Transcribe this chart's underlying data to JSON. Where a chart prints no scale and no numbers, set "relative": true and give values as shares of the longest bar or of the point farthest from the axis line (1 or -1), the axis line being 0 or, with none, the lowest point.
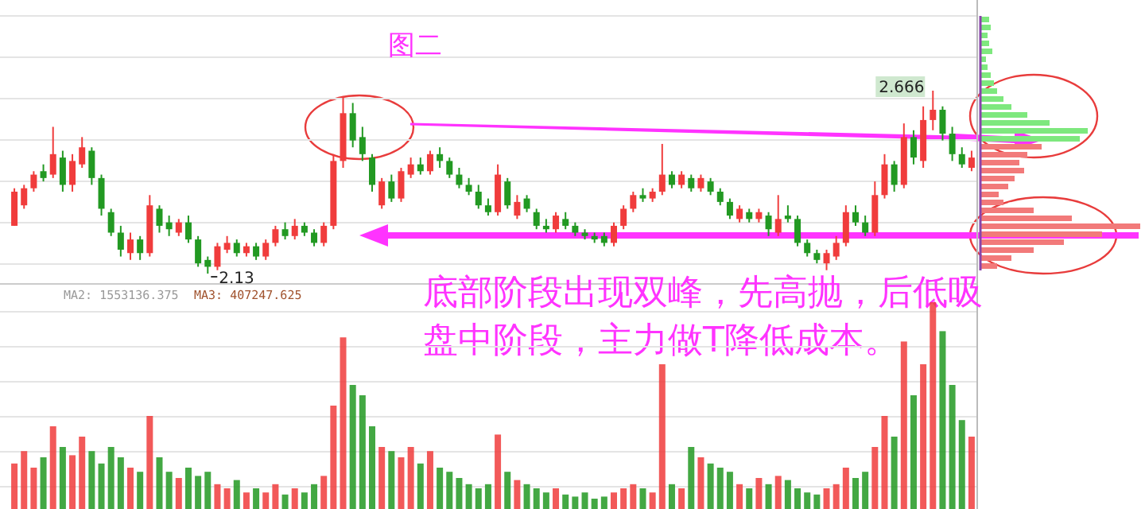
{
  "chart_data": [
    {
      "type": "candlestick",
      "categories": [
        null,
        null,
        null,
        null,
        null,
        null,
        null,
        null,
        null,
        null,
        null,
        null,
        null,
        null,
        null,
        null,
        null,
        null,
        null,
        null,
        null,
        null,
        null,
        null,
        null,
        null,
        null,
        null,
        null,
        null,
        null,
        null,
        null,
        null,
        null,
        null,
        null,
        null,
        null,
        null,
        null,
        null,
        null,
        null,
        null,
        null,
        null,
        null,
        null,
        null,
        null,
        null,
        null,
        null,
        null,
        null,
        null,
        null,
        null,
        null,
        null,
        null,
        null,
        null,
        null,
        null,
        null,
        null,
        null,
        null,
        null,
        null,
        null,
        null,
        null,
        null,
        null,
        null,
        null,
        null,
        null,
        null,
        null,
        null,
        null,
        null,
        null,
        null,
        null,
        null,
        null,
        null,
        null,
        null,
        null,
        null,
        null,
        null,
        null,
        null
      ],
      "ohlc": [
        [
          2.27,
          2.38,
          2.27,
          2.37
        ],
        [
          2.33,
          2.39,
          2.32,
          2.38
        ],
        [
          2.38,
          2.43,
          2.37,
          2.42
        ],
        [
          2.43,
          2.45,
          2.4,
          2.41
        ],
        [
          2.42,
          2.56,
          2.41,
          2.48
        ],
        [
          2.47,
          2.49,
          2.37,
          2.39
        ],
        [
          2.39,
          2.48,
          2.37,
          2.46
        ],
        [
          2.45,
          2.53,
          2.44,
          2.5
        ],
        [
          2.49,
          2.5,
          2.39,
          2.41
        ],
        [
          2.41,
          2.42,
          2.3,
          2.32
        ],
        [
          2.31,
          2.32,
          2.24,
          2.25
        ],
        [
          2.25,
          2.27,
          2.18,
          2.2
        ],
        [
          2.19,
          2.25,
          2.17,
          2.23
        ],
        [
          2.23,
          2.24,
          2.17,
          2.19
        ],
        [
          2.19,
          2.36,
          2.18,
          2.33
        ],
        [
          2.32,
          2.33,
          2.25,
          2.27
        ],
        [
          2.28,
          2.3,
          2.24,
          2.26
        ],
        [
          2.25,
          2.29,
          2.24,
          2.28
        ],
        [
          2.28,
          2.3,
          2.22,
          2.23
        ],
        [
          2.23,
          2.24,
          2.15,
          2.16
        ],
        [
          2.17,
          2.18,
          2.13,
          2.15
        ],
        [
          2.15,
          2.22,
          2.14,
          2.21
        ],
        [
          2.2,
          2.24,
          2.19,
          2.22
        ],
        [
          2.22,
          2.23,
          2.18,
          2.19
        ],
        [
          2.19,
          2.22,
          2.18,
          2.21
        ],
        [
          2.21,
          2.22,
          2.17,
          2.18
        ],
        [
          2.18,
          2.23,
          2.17,
          2.22
        ],
        [
          2.22,
          2.27,
          2.21,
          2.26
        ],
        [
          2.26,
          2.28,
          2.23,
          2.24
        ],
        [
          2.24,
          2.29,
          2.23,
          2.27
        ],
        [
          2.27,
          2.28,
          2.24,
          2.25
        ],
        [
          2.25,
          2.26,
          2.21,
          2.22
        ],
        [
          2.22,
          2.28,
          2.21,
          2.27
        ],
        [
          2.27,
          2.48,
          2.26,
          2.46
        ],
        [
          2.46,
          2.65,
          2.44,
          2.6
        ],
        [
          2.6,
          2.63,
          2.5,
          2.52
        ],
        [
          2.53,
          2.56,
          2.46,
          2.48
        ],
        [
          2.47,
          2.48,
          2.37,
          2.39
        ],
        [
          2.33,
          2.41,
          2.32,
          2.4
        ],
        [
          2.4,
          2.42,
          2.34,
          2.35
        ],
        [
          2.35,
          2.44,
          2.34,
          2.43
        ],
        [
          2.42,
          2.47,
          2.41,
          2.45
        ],
        [
          2.45,
          2.47,
          2.42,
          2.43
        ],
        [
          2.43,
          2.49,
          2.42,
          2.48
        ],
        [
          2.48,
          2.5,
          2.44,
          2.46
        ],
        [
          2.46,
          2.47,
          2.41,
          2.42
        ],
        [
          2.42,
          2.44,
          2.38,
          2.39
        ],
        [
          2.39,
          2.41,
          2.36,
          2.37
        ],
        [
          2.37,
          2.39,
          2.32,
          2.33
        ],
        [
          2.33,
          2.35,
          2.3,
          2.31
        ],
        [
          2.31,
          2.45,
          2.3,
          2.42
        ],
        [
          2.4,
          2.41,
          2.32,
          2.33
        ],
        [
          2.3,
          2.36,
          2.29,
          2.34
        ],
        [
          2.35,
          2.36,
          2.31,
          2.32
        ],
        [
          2.31,
          2.32,
          2.26,
          2.27
        ],
        [
          2.27,
          2.29,
          2.25,
          2.26
        ],
        [
          2.26,
          2.31,
          2.25,
          2.3
        ],
        [
          2.29,
          2.31,
          2.26,
          2.27
        ],
        [
          2.27,
          2.28,
          2.24,
          2.25
        ],
        [
          2.25,
          2.26,
          2.23,
          2.24
        ],
        [
          2.24,
          2.25,
          2.22,
          2.23
        ],
        [
          2.24,
          2.25,
          2.21,
          2.22
        ],
        [
          2.22,
          2.28,
          2.21,
          2.27
        ],
        [
          2.27,
          2.33,
          2.26,
          2.32
        ],
        [
          2.32,
          2.37,
          2.31,
          2.36
        ],
        [
          2.36,
          2.38,
          2.34,
          2.35
        ],
        [
          2.35,
          2.38,
          2.34,
          2.37
        ],
        [
          2.37,
          2.51,
          2.36,
          2.42
        ],
        [
          2.42,
          2.43,
          2.38,
          2.39
        ],
        [
          2.39,
          2.43,
          2.38,
          2.42
        ],
        [
          2.41,
          2.42,
          2.37,
          2.38
        ],
        [
          2.38,
          2.42,
          2.37,
          2.41
        ],
        [
          2.4,
          2.41,
          2.36,
          2.37
        ],
        [
          2.37,
          2.38,
          2.33,
          2.34
        ],
        [
          2.34,
          2.35,
          2.29,
          2.3
        ],
        [
          2.29,
          2.33,
          2.28,
          2.32
        ],
        [
          2.31,
          2.32,
          2.28,
          2.29
        ],
        [
          2.29,
          2.32,
          2.28,
          2.31
        ],
        [
          2.3,
          2.31,
          2.24,
          2.26
        ],
        [
          2.25,
          2.36,
          2.24,
          2.29
        ],
        [
          2.3,
          2.33,
          2.28,
          2.29
        ],
        [
          2.29,
          2.3,
          2.21,
          2.22
        ],
        [
          2.22,
          2.23,
          2.18,
          2.19
        ],
        [
          2.19,
          2.2,
          2.16,
          2.17
        ],
        [
          2.16,
          2.2,
          2.14,
          2.19
        ],
        [
          2.18,
          2.24,
          2.17,
          2.22
        ],
        [
          2.22,
          2.33,
          2.21,
          2.31
        ],
        [
          2.31,
          2.33,
          2.27,
          2.28
        ],
        [
          2.28,
          2.3,
          2.24,
          2.25
        ],
        [
          2.25,
          2.4,
          2.24,
          2.36
        ],
        [
          2.36,
          2.48,
          2.35,
          2.45
        ],
        [
          2.45,
          2.46,
          2.37,
          2.39
        ],
        [
          2.39,
          2.57,
          2.38,
          2.53
        ],
        [
          2.53,
          2.55,
          2.45,
          2.47
        ],
        [
          2.46,
          2.62,
          2.44,
          2.58
        ],
        [
          2.58,
          2.666,
          2.55,
          2.61
        ],
        [
          2.61,
          2.62,
          2.52,
          2.54
        ],
        [
          2.54,
          2.56,
          2.46,
          2.48
        ],
        [
          2.48,
          2.5,
          2.44,
          2.45
        ],
        [
          2.44,
          2.49,
          2.43,
          2.47
        ]
      ],
      "colors": [
        "#f03c3c",
        "#f03c3c",
        "#f03c3c",
        "#229922",
        "#f03c3c",
        "#229922",
        "#f03c3c",
        "#f03c3c",
        "#229922",
        "#229922",
        "#229922",
        "#229922",
        "#f03c3c",
        "#229922",
        "#f03c3c",
        "#229922",
        "#229922",
        "#f03c3c",
        "#229922",
        "#229922",
        "#229922",
        "#f03c3c",
        "#f03c3c",
        "#229922",
        "#f03c3c",
        "#229922",
        "#f03c3c",
        "#f03c3c",
        "#229922",
        "#f03c3c",
        "#229922",
        "#229922",
        "#f03c3c",
        "#f03c3c",
        "#f03c3c",
        "#229922",
        "#229922",
        "#229922",
        "#f03c3c",
        "#229922",
        "#f03c3c",
        "#f03c3c",
        "#229922",
        "#f03c3c",
        "#229922",
        "#229922",
        "#229922",
        "#229922",
        "#229922",
        "#229922",
        "#f03c3c",
        "#229922",
        "#f03c3c",
        "#229922",
        "#229922",
        "#229922",
        "#f03c3c",
        "#229922",
        "#229922",
        "#229922",
        "#229922",
        "#229922",
        "#f03c3c",
        "#f03c3c",
        "#f03c3c",
        "#229922",
        "#f03c3c",
        "#f03c3c",
        "#229922",
        "#f03c3c",
        "#229922",
        "#f03c3c",
        "#229922",
        "#229922",
        "#229922",
        "#f03c3c",
        "#229922",
        "#f03c3c",
        "#229922",
        "#f03c3c",
        "#229922",
        "#229922",
        "#229922",
        "#229922",
        "#f03c3c",
        "#f03c3c",
        "#f03c3c",
        "#229922",
        "#229922",
        "#f03c3c",
        "#f03c3c",
        "#229922",
        "#f03c3c",
        "#229922",
        "#f03c3c",
        "#f03c3c",
        "#229922",
        "#229922",
        "#229922",
        "#f03c3c"
      ],
      "grid": true,
      "annotations": [
        "图二",
        "底部阶段出现双峰，先高抛，后低吸盘中阶段，主力做T降低成本。",
        "2.13",
        "2.666"
      ]
    },
    {
      "type": "bar",
      "relative": true,
      "grid": true,
      "categories": [
        null,
        null,
        null,
        null,
        null,
        null,
        null,
        null,
        null,
        null,
        null,
        null,
        null,
        null,
        null,
        null,
        null,
        null,
        null,
        null,
        null,
        null,
        null,
        null,
        null,
        null,
        null,
        null,
        null,
        null,
        null,
        null,
        null,
        null,
        null,
        null,
        null,
        null,
        null,
        null,
        null,
        null,
        null,
        null,
        null,
        null,
        null,
        null,
        null,
        null,
        null,
        null,
        null,
        null,
        null,
        null,
        null,
        null,
        null,
        null,
        null,
        null,
        null,
        null,
        null,
        null,
        null,
        null,
        null,
        null,
        null,
        null,
        null,
        null,
        null,
        null,
        null,
        null,
        null,
        null,
        null,
        null,
        null,
        null,
        null,
        null,
        null,
        null,
        null,
        null,
        null,
        null,
        null,
        null,
        null,
        null,
        null,
        null,
        null,
        null
      ],
      "values": [
        0.22,
        0.28,
        0.2,
        0.25,
        0.4,
        0.3,
        0.26,
        0.35,
        0.28,
        0.22,
        0.3,
        0.25,
        0.2,
        0.18,
        0.45,
        0.25,
        0.18,
        0.15,
        0.2,
        0.16,
        0.18,
        0.12,
        0.1,
        0.14,
        0.08,
        0.1,
        0.08,
        0.12,
        0.07,
        0.1,
        0.08,
        0.12,
        0.16,
        0.5,
        0.83,
        0.6,
        0.55,
        0.4,
        0.3,
        0.28,
        0.25,
        0.3,
        0.22,
        0.28,
        0.2,
        0.18,
        0.15,
        0.12,
        0.1,
        0.12,
        0.36,
        0.18,
        0.14,
        0.12,
        0.1,
        0.08,
        0.1,
        0.07,
        0.06,
        0.08,
        0.05,
        0.06,
        0.08,
        0.1,
        0.12,
        0.1,
        0.08,
        0.7,
        0.12,
        0.1,
        0.3,
        0.25,
        0.22,
        0.2,
        0.18,
        0.12,
        0.1,
        0.15,
        0.12,
        0.16,
        0.14,
        0.1,
        0.08,
        0.07,
        0.1,
        0.12,
        0.2,
        0.15,
        0.18,
        0.3,
        0.45,
        0.35,
        0.81,
        0.55,
        0.7,
        1.0,
        0.86,
        0.6,
        0.43,
        0.35
      ],
      "colors": [
        "#f03c3c",
        "#f03c3c",
        "#f03c3c",
        "#229922",
        "#f03c3c",
        "#229922",
        "#f03c3c",
        "#f03c3c",
        "#229922",
        "#229922",
        "#229922",
        "#229922",
        "#f03c3c",
        "#229922",
        "#f03c3c",
        "#229922",
        "#229922",
        "#f03c3c",
        "#229922",
        "#229922",
        "#229922",
        "#f03c3c",
        "#f03c3c",
        "#229922",
        "#f03c3c",
        "#229922",
        "#f03c3c",
        "#f03c3c",
        "#229922",
        "#f03c3c",
        "#229922",
        "#229922",
        "#f03c3c",
        "#f03c3c",
        "#f03c3c",
        "#229922",
        "#229922",
        "#229922",
        "#f03c3c",
        "#229922",
        "#f03c3c",
        "#f03c3c",
        "#229922",
        "#f03c3c",
        "#229922",
        "#229922",
        "#229922",
        "#229922",
        "#229922",
        "#229922",
        "#f03c3c",
        "#229922",
        "#f03c3c",
        "#229922",
        "#229922",
        "#229922",
        "#f03c3c",
        "#229922",
        "#229922",
        "#229922",
        "#229922",
        "#229922",
        "#f03c3c",
        "#f03c3c",
        "#f03c3c",
        "#229922",
        "#f03c3c",
        "#f03c3c",
        "#229922",
        "#f03c3c",
        "#229922",
        "#f03c3c",
        "#229922",
        "#229922",
        "#229922",
        "#f03c3c",
        "#229922",
        "#f03c3c",
        "#229922",
        "#f03c3c",
        "#229922",
        "#229922",
        "#229922",
        "#229922",
        "#f03c3c",
        "#f03c3c",
        "#f03c3c",
        "#229922",
        "#229922",
        "#f03c3c",
        "#f03c3c",
        "#229922",
        "#f03c3c",
        "#229922",
        "#f03c3c",
        "#f03c3c",
        "#229922",
        "#229922",
        "#229922",
        "#f03c3c"
      ],
      "annotations": [
        "MA2: 1553136.375",
        "MA3: 407247.625"
      ]
    },
    {
      "type": "bar",
      "orientation": "horizontal",
      "relative": true,
      "categories": [
        null,
        null,
        null,
        null,
        null,
        null,
        null,
        null,
        null,
        null,
        null,
        null,
        null,
        null,
        null,
        null,
        null,
        null,
        null,
        null,
        null,
        null,
        null,
        null,
        null,
        null,
        null,
        null,
        null,
        null,
        null,
        null
      ],
      "values": [
        0.05,
        0.06,
        0.04,
        0.05,
        0.07,
        0.03,
        0.04,
        0.06,
        0.08,
        0.1,
        0.14,
        0.19,
        0.29,
        0.43,
        0.67,
        0.62,
        0.38,
        0.29,
        0.24,
        0.27,
        0.21,
        0.17,
        0.11,
        0.14,
        0.33,
        0.57,
        1.0,
        0.76,
        0.52,
        0.33,
        0.19,
        0.1
      ],
      "colors": [
        "#7ee87e",
        "#7ee87e",
        "#7ee87e",
        "#7ee87e",
        "#7ee87e",
        "#7ee87e",
        "#7ee87e",
        "#7ee87e",
        "#7ee87e",
        "#7ee87e",
        "#7ee87e",
        "#7ee87e",
        "#7ee87e",
        "#7ee87e",
        "#7ee87e",
        "#7ee87e",
        "#f27a7a",
        "#f27a7a",
        "#f27a7a",
        "#f27a7a",
        "#f27a7a",
        "#f27a7a",
        "#f27a7a",
        "#f27a7a",
        "#f27a7a",
        "#f27a7a",
        "#f27a7a",
        "#f27a7a",
        "#f27a7a",
        "#f27a7a",
        "#f27a7a",
        "#f27a7a"
      ]
    }
  ]
}
